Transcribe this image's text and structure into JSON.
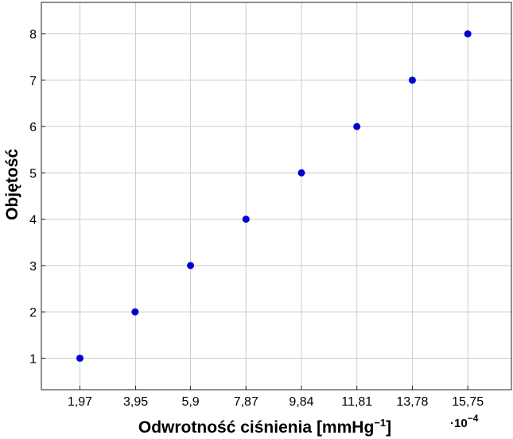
{
  "chart_data": {
    "type": "scatter",
    "title": "",
    "xlabel": "Odwrotność ciśnienia [mmHg",
    "xlabel_sup": "−1",
    "xlabel_end": "]",
    "ylabel": "Objętość",
    "x_scale_label": "·10",
    "x_scale_exp": "−4",
    "x_ticks": [
      1.97,
      3.95,
      5.9,
      7.87,
      9.84,
      11.81,
      13.78,
      15.75
    ],
    "x_tick_labels": [
      "1,97",
      "3,95",
      "5,9",
      "7,87",
      "9,84",
      "11,81",
      "13,78",
      "15,75"
    ],
    "y_ticks": [
      1,
      2,
      3,
      4,
      5,
      6,
      7,
      8
    ],
    "y_tick_labels": [
      "1",
      "2",
      "3",
      "4",
      "5",
      "6",
      "7",
      "8"
    ],
    "xlim": [
      0.6,
      17.3
    ],
    "ylim": [
      0.32,
      8.68
    ],
    "grid": true,
    "marker_color": "#0000d0",
    "series": [
      {
        "x": [
          1.97,
          3.93,
          5.9,
          7.87,
          9.84,
          11.81,
          13.78,
          15.75
        ],
        "y": [
          1,
          2,
          3,
          4,
          5,
          6,
          7,
          8
        ]
      }
    ]
  }
}
